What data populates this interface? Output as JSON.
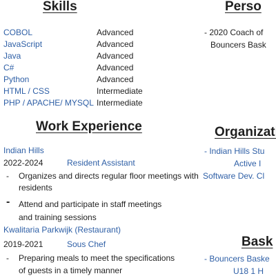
{
  "skills": {
    "heading": "Skills",
    "items": [
      {
        "name": "COBOL",
        "level": "Advanced"
      },
      {
        "name": "JavaScript",
        "level": "Advanced"
      },
      {
        "name": "Java",
        "level": "Advanced"
      },
      {
        "name": "C#",
        "level": "Advanced"
      },
      {
        "name": "Python",
        "level": "Advanced"
      },
      {
        "name": "HTML / CSS",
        "level": "Intermediate"
      },
      {
        "name": "PHP / APACHE/ MYSQL",
        "level": "Intermediate"
      }
    ]
  },
  "work": {
    "heading": "Work Experience",
    "jobs": [
      {
        "employer": "Indian Hills",
        "years": "2022-2024",
        "role": "Resident Assistant",
        "bullets": [
          {
            "line1": "Organizes and directs regular floor meetings with",
            "line2": "residents"
          },
          {
            "line1": "Attend and participate in staff meetings",
            "line2": "and training sessions"
          }
        ]
      },
      {
        "employer": "Kwalitaria Parkwijk (Restaurant)",
        "years": "2019-2021",
        "role": "Sous Chef",
        "bullets": [
          {
            "line1": "Preparing meals to meet the specifications",
            "line2": "of guests in a timely manner"
          }
        ]
      }
    ]
  },
  "right": {
    "personal_heading": "Perso",
    "personal_line1": "- 2020 Coach of",
    "personal_line2": "Bouncers Bask",
    "org_heading": "Organizatio",
    "org_line1": "- Indian Hills Stu",
    "org_line2": "Active I",
    "org_line3": "Software Dev. Cl",
    "bask_heading": "Bask",
    "bask_line1": "- Bouncers Baske",
    "bask_line2": "U18 1 H"
  },
  "bullet_char": "-",
  "colors": {
    "accent": "#2e5fa6",
    "text": "#1f1f1f"
  }
}
